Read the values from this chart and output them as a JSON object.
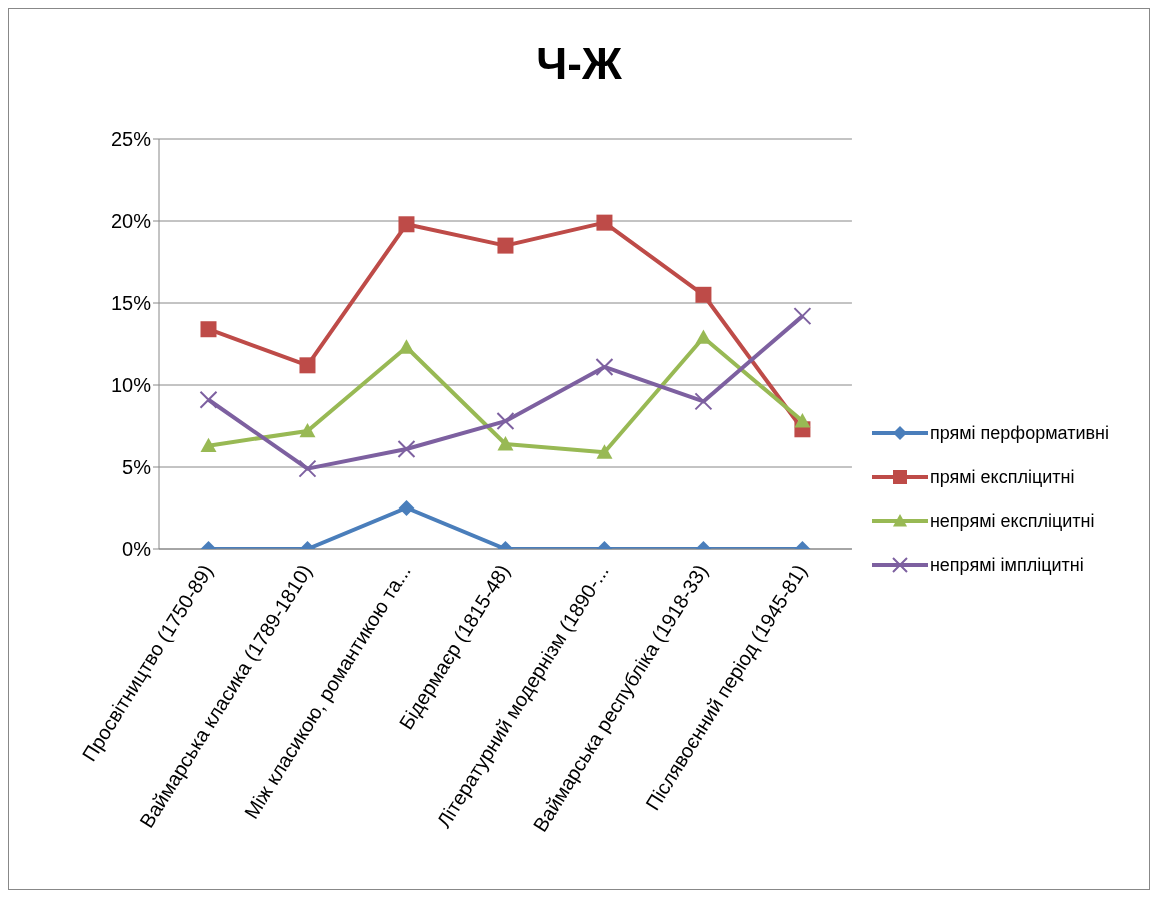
{
  "chart_data": {
    "type": "line",
    "title": "Ч-Ж",
    "categories": [
      "Просвітництво (1750-89)",
      "Ваймарська класика (1789-1810)",
      "Між класикою, романтикою та...",
      "Бідермаєр (1815-48)",
      "Літературний модернізм (1890-...",
      "Ваймарська республіка (1918-33)",
      "Післявоєнний період (1945-81)"
    ],
    "series": [
      {
        "name": "прямі перформативні",
        "color": "#4a7ebb",
        "marker": "diamond",
        "values": [
          0,
          0,
          2.5,
          0,
          0,
          0,
          0
        ]
      },
      {
        "name": "прямі експліцитні",
        "color": "#be4b48",
        "marker": "square",
        "values": [
          13.4,
          11.2,
          19.8,
          18.5,
          19.9,
          15.5,
          7.3
        ]
      },
      {
        "name": "непрямі експліцитні",
        "color": "#98b954",
        "marker": "triangle",
        "values": [
          6.3,
          7.2,
          12.3,
          6.4,
          5.9,
          12.9,
          7.8
        ]
      },
      {
        "name": "непрямі імпліцитні",
        "color": "#7d60a0",
        "marker": "cross",
        "values": [
          9.1,
          4.9,
          6.1,
          7.8,
          11.1,
          9.0,
          14.2
        ]
      }
    ],
    "ylim": [
      0,
      25
    ],
    "yticks": [
      {
        "value": 0,
        "label": "0%"
      },
      {
        "value": 5,
        "label": "5%"
      },
      {
        "value": 10,
        "label": "10%"
      },
      {
        "value": 15,
        "label": "15%"
      },
      {
        "value": 20,
        "label": "20%"
      },
      {
        "value": 25,
        "label": "25%"
      }
    ],
    "grid": "y",
    "legend": "right",
    "line_style": "solid"
  }
}
